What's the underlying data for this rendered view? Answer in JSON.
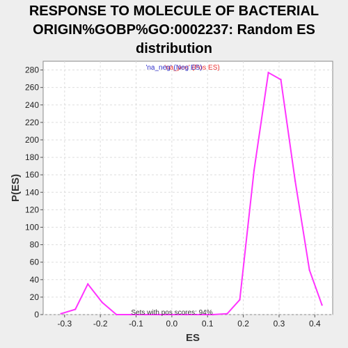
{
  "chart_data": {
    "type": "line",
    "title_lines": [
      "RESPONSE TO MOLECULE OF BACTERIAL",
      "ORIGIN%GOBP%GO:0002237: Random ES",
      "distribution"
    ],
    "xlabel": "ES",
    "ylabel": "P(ES)",
    "xlim": [
      -0.36,
      0.45
    ],
    "ylim": [
      0,
      290
    ],
    "xticks": [
      -0.3,
      -0.2,
      -0.1,
      0,
      0.1,
      0.2,
      0.3,
      0.4
    ],
    "xtick_labels": [
      "-0.3",
      "-0.2",
      "-0.1",
      "0.0",
      "0.1",
      "0.2",
      "0.3",
      "0.4"
    ],
    "yticks": [
      0,
      20,
      40,
      60,
      80,
      100,
      120,
      140,
      160,
      180,
      200,
      220,
      240,
      260,
      280
    ],
    "grid": true,
    "legend": {
      "neg_label": "'na_neg' (Neg ES)",
      "neg_color": "#3333cc",
      "pos_label": "'na_pos' (Pos ES)",
      "pos_color": "#ee3333",
      "placement": "top-center"
    },
    "annotation": "Sets with pos scores: 94%",
    "series": [
      {
        "color": "#ff33ff",
        "x": [
          -0.31,
          -0.27,
          -0.235,
          -0.195,
          -0.155,
          -0.115,
          -0.075,
          -0.035,
          0.0,
          0.04,
          0.08,
          0.115,
          0.155,
          0.19,
          0.23,
          0.27,
          0.305,
          0.345,
          0.385,
          0.42
        ],
        "y": [
          1,
          6,
          35,
          14,
          0,
          0,
          0,
          0,
          0,
          0,
          0,
          0,
          1,
          17,
          165,
          277,
          269,
          153,
          51,
          11
        ]
      }
    ]
  }
}
